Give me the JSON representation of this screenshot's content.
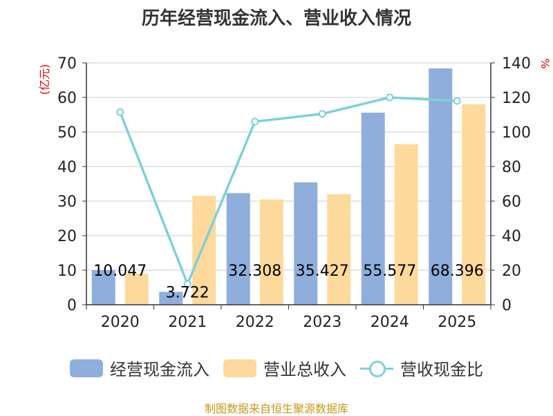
{
  "title": "历年经营现金流入、营业收入情况",
  "source": "制图数据来自恒生聚源数据库",
  "colors": {
    "cash_inflow": "#8faedb",
    "revenue": "#fdd99b",
    "ratio": "#7dd0d8",
    "unit": "#e00000"
  },
  "chart_data": {
    "type": "bar",
    "categories": [
      "2020",
      "2021",
      "2022",
      "2023",
      "2024",
      "2025"
    ],
    "series": [
      {
        "name": "经营现金流入",
        "axis": "left",
        "values": [
          10.047,
          3.722,
          32.308,
          35.427,
          55.577,
          68.396
        ],
        "labels": [
          "10.047",
          "3.722",
          "32.308",
          "35.427",
          "55.577",
          "68.396"
        ]
      },
      {
        "name": "营业总收入",
        "axis": "left",
        "values": [
          9.0,
          31.5,
          30.5,
          32.0,
          46.5,
          58.0
        ]
      },
      {
        "name": "营收现金比",
        "type": "line",
        "axis": "right",
        "values": [
          111.5,
          12.0,
          106.0,
          110.5,
          120.0,
          118.0
        ]
      }
    ],
    "y_left": {
      "label": "(亿元)",
      "min": 0,
      "max": 70,
      "ticks": [
        "0",
        "10",
        "20",
        "30",
        "40",
        "50",
        "60",
        "70"
      ]
    },
    "y_right": {
      "label": "%",
      "min": 0,
      "max": 140,
      "ticks": [
        "0",
        "20",
        "40",
        "60",
        "80",
        "100",
        "120",
        "140"
      ]
    },
    "grid": true,
    "legend": "bottom"
  }
}
